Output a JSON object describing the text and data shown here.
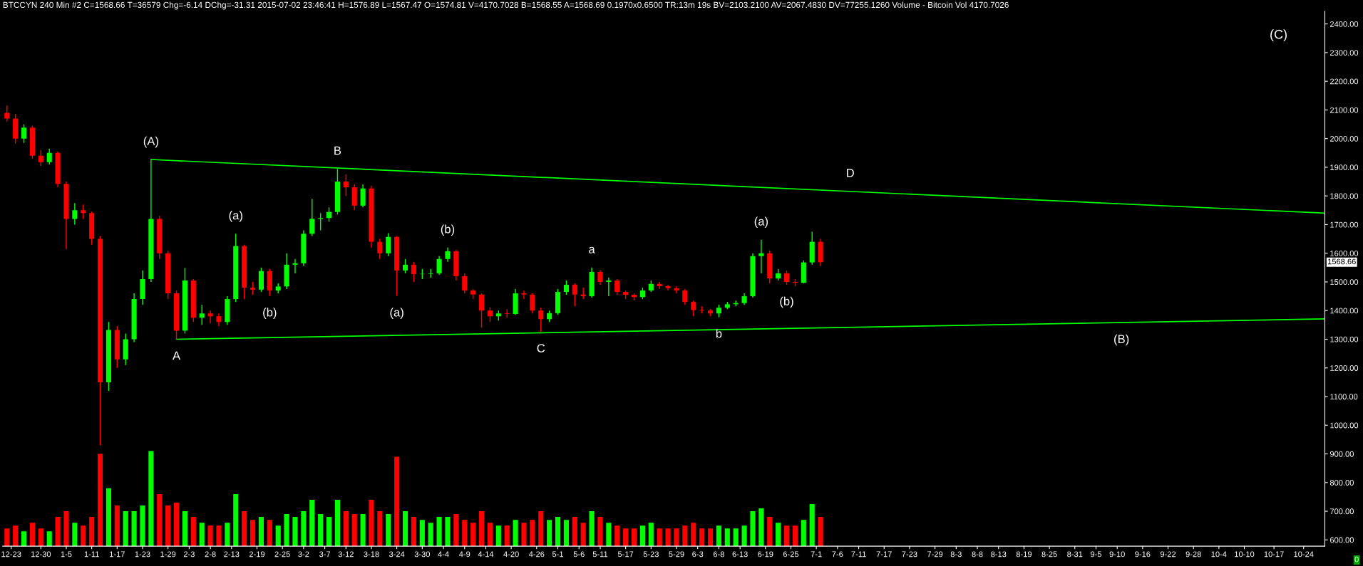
{
  "chart_data": {
    "type": "candlestick",
    "title": "BTCCYN 240 Min #2 C=1568.66 T=36579 Chg=-6.14 DChg=-31.31 2015-07-02 23:46:41 H=1576.89 L=1567.47 O=1574.81 V=4170.7028 B=1568.55 A=1568.69 0.1970x0.6500 TR:13m 19s BV=2103.2100 AV=2067.4830 DV=77255.1260 Volume - Bitcoin Vol 4170.7026",
    "x": [
      "2014-12-22",
      "2014-12-24",
      "2014-12-26",
      "2014-12-28",
      "2014-12-30",
      "2015-01-01",
      "2015-01-03",
      "2015-01-05",
      "2015-01-07",
      "2015-01-09",
      "2015-01-11",
      "2015-01-13",
      "2015-01-15",
      "2015-01-17",
      "2015-01-19",
      "2015-01-21",
      "2015-01-23",
      "2015-01-25",
      "2015-01-27",
      "2015-01-29",
      "2015-01-31",
      "2015-02-02",
      "2015-02-04",
      "2015-02-06",
      "2015-02-08",
      "2015-02-10",
      "2015-02-12",
      "2015-02-14",
      "2015-02-16",
      "2015-02-18",
      "2015-02-20",
      "2015-02-22",
      "2015-02-24",
      "2015-02-26",
      "2015-02-28",
      "2015-03-02",
      "2015-03-04",
      "2015-03-06",
      "2015-03-08",
      "2015-03-10",
      "2015-03-12",
      "2015-03-14",
      "2015-03-16",
      "2015-03-18",
      "2015-03-20",
      "2015-03-22",
      "2015-03-24",
      "2015-03-26",
      "2015-03-28",
      "2015-03-30",
      "2015-04-01",
      "2015-04-03",
      "2015-04-05",
      "2015-04-07",
      "2015-04-09",
      "2015-04-11",
      "2015-04-13",
      "2015-04-15",
      "2015-04-17",
      "2015-04-19",
      "2015-04-21",
      "2015-04-23",
      "2015-04-25",
      "2015-04-27",
      "2015-04-29",
      "2015-05-01",
      "2015-05-03",
      "2015-05-05",
      "2015-05-07",
      "2015-05-09",
      "2015-05-11",
      "2015-05-13",
      "2015-05-15",
      "2015-05-17",
      "2015-05-19",
      "2015-05-21",
      "2015-05-23",
      "2015-05-25",
      "2015-05-27",
      "2015-05-29",
      "2015-05-31",
      "2015-06-02",
      "2015-06-04",
      "2015-06-06",
      "2015-06-08",
      "2015-06-10",
      "2015-06-12",
      "2015-06-14",
      "2015-06-16",
      "2015-06-18",
      "2015-06-20",
      "2015-06-22",
      "2015-06-24",
      "2015-06-26",
      "2015-06-28",
      "2015-06-30",
      "2015-07-02"
    ],
    "ohlc": [
      [
        2090,
        2115,
        2060,
        2070
      ],
      [
        2070,
        2086,
        1983,
        2000
      ],
      [
        2000,
        2050,
        1985,
        2038
      ],
      [
        2038,
        2045,
        1930,
        1940
      ],
      [
        1940,
        1960,
        1905,
        1918
      ],
      [
        1918,
        1965,
        1910,
        1950
      ],
      [
        1950,
        1955,
        1830,
        1842
      ],
      [
        1842,
        1850,
        1614,
        1720
      ],
      [
        1720,
        1775,
        1700,
        1750
      ],
      [
        1750,
        1770,
        1720,
        1740
      ],
      [
        1740,
        1745,
        1630,
        1650
      ],
      [
        1650,
        1660,
        930,
        1150
      ],
      [
        1150,
        1360,
        1120,
        1332
      ],
      [
        1332,
        1345,
        1200,
        1230
      ],
      [
        1230,
        1320,
        1210,
        1300
      ],
      [
        1300,
        1460,
        1290,
        1440
      ],
      [
        1440,
        1540,
        1420,
        1510
      ],
      [
        1510,
        1927,
        1500,
        1720
      ],
      [
        1720,
        1730,
        1580,
        1600
      ],
      [
        1600,
        1610,
        1440,
        1460
      ],
      [
        1460,
        1470,
        1300,
        1330
      ],
      [
        1330,
        1549,
        1320,
        1505
      ],
      [
        1505,
        1510,
        1360,
        1375
      ],
      [
        1375,
        1420,
        1350,
        1390
      ],
      [
        1390,
        1400,
        1355,
        1380
      ],
      [
        1380,
        1390,
        1345,
        1360
      ],
      [
        1360,
        1450,
        1350,
        1440
      ],
      [
        1440,
        1668,
        1430,
        1625
      ],
      [
        1625,
        1630,
        1440,
        1480
      ],
      [
        1480,
        1500,
        1455,
        1473
      ],
      [
        1473,
        1550,
        1465,
        1538
      ],
      [
        1538,
        1545,
        1451,
        1470
      ],
      [
        1470,
        1495,
        1460,
        1484
      ],
      [
        1484,
        1600,
        1475,
        1560
      ],
      [
        1560,
        1580,
        1530,
        1565
      ],
      [
        1565,
        1680,
        1555,
        1668
      ],
      [
        1668,
        1790,
        1660,
        1720
      ],
      [
        1720,
        1740,
        1680,
        1723
      ],
      [
        1723,
        1760,
        1710,
        1744
      ],
      [
        1744,
        1894,
        1735,
        1850
      ],
      [
        1850,
        1875,
        1800,
        1830
      ],
      [
        1830,
        1840,
        1750,
        1766
      ],
      [
        1766,
        1840,
        1760,
        1826
      ],
      [
        1826,
        1835,
        1620,
        1640
      ],
      [
        1640,
        1650,
        1580,
        1600
      ],
      [
        1600,
        1670,
        1590,
        1657
      ],
      [
        1657,
        1660,
        1451,
        1540
      ],
      [
        1540,
        1580,
        1530,
        1560
      ],
      [
        1560,
        1570,
        1500,
        1527
      ],
      [
        1527,
        1545,
        1510,
        1528
      ],
      [
        1528,
        1545,
        1515,
        1530
      ],
      [
        1530,
        1590,
        1525,
        1580
      ],
      [
        1580,
        1620,
        1570,
        1607
      ],
      [
        1607,
        1612,
        1505,
        1520
      ],
      [
        1520,
        1530,
        1460,
        1470
      ],
      [
        1470,
        1475,
        1440,
        1456
      ],
      [
        1456,
        1460,
        1340,
        1400
      ],
      [
        1400,
        1412,
        1360,
        1380
      ],
      [
        1380,
        1400,
        1365,
        1390
      ],
      [
        1390,
        1405,
        1375,
        1388
      ],
      [
        1388,
        1475,
        1385,
        1460
      ],
      [
        1460,
        1470,
        1440,
        1456
      ],
      [
        1456,
        1460,
        1390,
        1400
      ],
      [
        1400,
        1410,
        1326,
        1370
      ],
      [
        1370,
        1400,
        1360,
        1391
      ],
      [
        1391,
        1475,
        1385,
        1465
      ],
      [
        1465,
        1505,
        1455,
        1490
      ],
      [
        1490,
        1495,
        1415,
        1456
      ],
      [
        1456,
        1480,
        1440,
        1450
      ],
      [
        1450,
        1550,
        1445,
        1535
      ],
      [
        1535,
        1540,
        1490,
        1500
      ],
      [
        1500,
        1515,
        1450,
        1505
      ],
      [
        1505,
        1510,
        1455,
        1465
      ],
      [
        1465,
        1470,
        1440,
        1455
      ],
      [
        1455,
        1460,
        1435,
        1447
      ],
      [
        1447,
        1480,
        1440,
        1470
      ],
      [
        1470,
        1505,
        1465,
        1493
      ],
      [
        1493,
        1500,
        1475,
        1485
      ],
      [
        1485,
        1490,
        1470,
        1478
      ],
      [
        1478,
        1485,
        1460,
        1470
      ],
      [
        1470,
        1475,
        1420,
        1430
      ],
      [
        1430,
        1435,
        1380,
        1402
      ],
      [
        1402,
        1415,
        1390,
        1400
      ],
      [
        1400,
        1405,
        1380,
        1390
      ],
      [
        1390,
        1420,
        1377,
        1410
      ],
      [
        1410,
        1430,
        1405,
        1422
      ],
      [
        1422,
        1435,
        1415,
        1426
      ],
      [
        1426,
        1460,
        1420,
        1450
      ],
      [
        1450,
        1600,
        1445,
        1590
      ],
      [
        1590,
        1647,
        1530,
        1600
      ],
      [
        1600,
        1610,
        1495,
        1512
      ],
      [
        1512,
        1545,
        1505,
        1530
      ],
      [
        1530,
        1540,
        1490,
        1500
      ],
      [
        1500,
        1510,
        1485,
        1497
      ],
      [
        1497,
        1575,
        1495,
        1568
      ],
      [
        1568,
        1675,
        1560,
        1640
      ],
      [
        1640,
        1650,
        1555,
        1568.66
      ]
    ],
    "colors": [
      "#ff0000",
      "#ff0000",
      "#00ff00",
      "#ff0000",
      "#ff0000",
      "#00ff00",
      "#ff0000",
      "#ff0000",
      "#00ff00",
      "#ff0000",
      "#ff0000",
      "#ff0000",
      "#00ff00",
      "#ff0000",
      "#00ff00",
      "#00ff00",
      "#00ff00",
      "#00ff00",
      "#ff0000",
      "#ff0000",
      "#ff0000",
      "#00ff00",
      "#ff0000",
      "#00ff00",
      "#ff0000",
      "#ff0000",
      "#00ff00",
      "#00ff00",
      "#ff0000",
      "#ff0000",
      "#00ff00",
      "#ff0000",
      "#00ff00",
      "#00ff00",
      "#00ff00",
      "#00ff00",
      "#00ff00",
      "#00ff00",
      "#00ff00",
      "#00ff00",
      "#ff0000",
      "#ff0000",
      "#00ff00",
      "#ff0000",
      "#ff0000",
      "#00ff00",
      "#ff0000",
      "#00ff00",
      "#ff0000",
      "#00ff00",
      "#00ff00",
      "#00ff00",
      "#00ff00",
      "#ff0000",
      "#ff0000",
      "#ff0000",
      "#ff0000",
      "#ff0000",
      "#00ff00",
      "#ff0000",
      "#00ff00",
      "#ff0000",
      "#ff0000",
      "#ff0000",
      "#00ff00",
      "#00ff00",
      "#00ff00",
      "#ff0000",
      "#ff0000",
      "#00ff00",
      "#ff0000",
      "#00ff00",
      "#ff0000",
      "#ff0000",
      "#ff0000",
      "#00ff00",
      "#00ff00",
      "#ff0000",
      "#ff0000",
      "#ff0000",
      "#ff0000",
      "#ff0000",
      "#ff0000",
      "#ff0000",
      "#00ff00",
      "#00ff00",
      "#00ff00",
      "#00ff00",
      "#00ff00",
      "#00ff00",
      "#ff0000",
      "#00ff00",
      "#ff0000",
      "#ff0000",
      "#00ff00",
      "#00ff00",
      "#ff0000"
    ],
    "series": [
      {
        "type": "bar",
        "values": [
          640,
          650,
          630,
          660,
          640,
          630,
          680,
          700,
          660,
          650,
          680,
          900,
          780,
          720,
          700,
          700,
          720,
          910,
          760,
          720,
          730,
          700,
          680,
          660,
          650,
          650,
          660,
          760,
          700,
          670,
          680,
          670,
          650,
          690,
          680,
          700,
          740,
          690,
          680,
          740,
          700,
          690,
          690,
          740,
          700,
          690,
          890,
          700,
          680,
          670,
          660,
          680,
          680,
          690,
          670,
          660,
          700,
          660,
          650,
          650,
          670,
          660,
          670,
          700,
          670,
          680,
          670,
          680,
          660,
          700,
          680,
          660,
          650,
          640,
          640,
          650,
          660,
          640,
          640,
          640,
          650,
          660,
          640,
          640,
          650,
          640,
          640,
          650,
          700,
          710,
          680,
          660,
          650,
          650,
          670,
          725,
          680
        ],
        "colors": [
          "#ff0000",
          "#ff0000",
          "#00ff00",
          "#ff0000",
          "#ff0000",
          "#00ff00",
          "#ff0000",
          "#ff0000",
          "#00ff00",
          "#ff0000",
          "#ff0000",
          "#ff0000",
          "#00ff00",
          "#ff0000",
          "#00ff00",
          "#00ff00",
          "#00ff00",
          "#00ff00",
          "#ff0000",
          "#ff0000",
          "#ff0000",
          "#00ff00",
          "#ff0000",
          "#00ff00",
          "#ff0000",
          "#ff0000",
          "#00ff00",
          "#00ff00",
          "#ff0000",
          "#ff0000",
          "#00ff00",
          "#ff0000",
          "#00ff00",
          "#00ff00",
          "#00ff00",
          "#00ff00",
          "#00ff00",
          "#00ff00",
          "#00ff00",
          "#00ff00",
          "#ff0000",
          "#ff0000",
          "#00ff00",
          "#ff0000",
          "#ff0000",
          "#00ff00",
          "#ff0000",
          "#00ff00",
          "#ff0000",
          "#00ff00",
          "#00ff00",
          "#00ff00",
          "#00ff00",
          "#ff0000",
          "#ff0000",
          "#ff0000",
          "#ff0000",
          "#ff0000",
          "#00ff00",
          "#ff0000",
          "#00ff00",
          "#ff0000",
          "#ff0000",
          "#ff0000",
          "#00ff00",
          "#00ff00",
          "#00ff00",
          "#ff0000",
          "#ff0000",
          "#00ff00",
          "#ff0000",
          "#00ff00",
          "#ff0000",
          "#ff0000",
          "#ff0000",
          "#00ff00",
          "#00ff00",
          "#ff0000",
          "#ff0000",
          "#ff0000",
          "#ff0000",
          "#ff0000",
          "#ff0000",
          "#ff0000",
          "#00ff00",
          "#00ff00",
          "#00ff00",
          "#00ff00",
          "#00ff00",
          "#00ff00",
          "#ff0000",
          "#00ff00",
          "#ff0000",
          "#ff0000",
          "#00ff00",
          "#00ff00",
          "#ff0000"
        ]
      },
      {
        "type": "line",
        "x": [
          "2015-01-25",
          "2015-10-29"
        ],
        "values": [
          1927,
          1740
        ],
        "color": "#00ff00"
      },
      {
        "type": "line",
        "x": [
          "2015-01-31",
          "2015-10-29"
        ],
        "values": [
          1300,
          1371
        ],
        "color": "#00ff00"
      }
    ],
    "annotations": [
      {
        "text": "(A)",
        "x": "2015-01-25",
        "y": 1927
      },
      {
        "text": "A",
        "x": "2015-01-31",
        "y": 1300
      },
      {
        "text": "B",
        "x": "2015-03-10",
        "y": 1894
      },
      {
        "text": "(a)",
        "x": "2015-02-14",
        "y": 1668
      },
      {
        "text": "(b)",
        "x": "2015-02-22",
        "y": 1451
      },
      {
        "text": "(a)",
        "x": "2015-03-24",
        "y": 1451
      },
      {
        "text": "(b)",
        "x": "2015-04-05",
        "y": 1620
      },
      {
        "text": "C",
        "x": "2015-04-27",
        "y": 1326
      },
      {
        "text": "a",
        "x": "2015-05-09",
        "y": 1550
      },
      {
        "text": "b",
        "x": "2015-06-08",
        "y": 1377
      },
      {
        "text": "(a)",
        "x": "2015-06-18",
        "y": 1647
      },
      {
        "text": "(b)",
        "x": "2015-06-24",
        "y": 1490
      },
      {
        "text": "D",
        "x": "2015-07-09",
        "y": 1816
      },
      {
        "text": "(B)",
        "x": "2015-09-11",
        "y": 1358
      },
      "(C)",
      "1568.66",
      "0"
    ],
    "xlim": [
      "2014-12-21",
      "2015-10-29"
    ],
    "ylim": [
      578,
      2444
    ],
    "xticks": [
      {
        "value": "2014-12-23",
        "label": "12-23"
      },
      {
        "value": "2014-12-30",
        "label": "12-30"
      },
      {
        "value": "2015-01-05",
        "label": "1-5"
      },
      {
        "value": "2015-01-11",
        "label": "1-11"
      },
      {
        "value": "2015-01-17",
        "label": "1-17"
      },
      {
        "value": "2015-01-23",
        "label": "1-23"
      },
      {
        "value": "2015-01-29",
        "label": "1-29"
      },
      {
        "value": "2015-02-03",
        "label": "2-3"
      },
      {
        "value": "2015-02-08",
        "label": "2-8"
      },
      {
        "value": "2015-02-13",
        "label": "2-13"
      },
      {
        "value": "2015-02-19",
        "label": "2-19"
      },
      {
        "value": "2015-02-25",
        "label": "2-25"
      },
      {
        "value": "2015-03-02",
        "label": "3-2"
      },
      {
        "value": "2015-03-07",
        "label": "3-7"
      },
      {
        "value": "2015-03-12",
        "label": "3-12"
      },
      {
        "value": "2015-03-18",
        "label": "3-18"
      },
      {
        "value": "2015-03-24",
        "label": "3-24"
      },
      {
        "value": "2015-03-30",
        "label": "3-30"
      },
      {
        "value": "2015-04-04",
        "label": "4-4"
      },
      {
        "value": "2015-04-09",
        "label": "4-9"
      },
      {
        "value": "2015-04-14",
        "label": "4-14"
      },
      {
        "value": "2015-04-20",
        "label": "4-20"
      },
      {
        "value": "2015-04-26",
        "label": "4-26"
      },
      {
        "value": "2015-05-01",
        "label": "5-1"
      },
      {
        "value": "2015-05-06",
        "label": "5-6"
      },
      {
        "value": "2015-05-11",
        "label": "5-11"
      },
      {
        "value": "2015-05-17",
        "label": "5-17"
      },
      {
        "value": "2015-05-23",
        "label": "5-23"
      },
      {
        "value": "2015-05-29",
        "label": "5-29"
      },
      {
        "value": "2015-06-03",
        "label": "6-3"
      },
      {
        "value": "2015-06-08",
        "label": "6-8"
      },
      {
        "value": "2015-06-13",
        "label": "6-13"
      },
      {
        "value": "2015-06-19",
        "label": "6-19"
      },
      {
        "value": "2015-06-25",
        "label": "6-25"
      },
      {
        "value": "2015-07-01",
        "label": "7-1"
      },
      {
        "value": "2015-07-06",
        "label": "7-6"
      },
      {
        "value": "2015-07-11",
        "label": "7-11"
      },
      {
        "value": "2015-07-17",
        "label": "7-17"
      },
      {
        "value": "2015-07-23",
        "label": "7-23"
      },
      {
        "value": "2015-07-29",
        "label": "7-29"
      },
      {
        "value": "2015-08-03",
        "label": "8-3"
      },
      {
        "value": "2015-08-08",
        "label": "8-8"
      },
      {
        "value": "2015-08-13",
        "label": "8-13"
      },
      {
        "value": "2015-08-19",
        "label": "8-19"
      },
      {
        "value": "2015-08-25",
        "label": "8-25"
      },
      {
        "value": "2015-08-31",
        "label": "8-31"
      },
      {
        "value": "2015-09-05",
        "label": "9-5"
      },
      {
        "value": "2015-09-10",
        "label": "9-10"
      },
      {
        "value": "2015-09-16",
        "label": "9-16"
      },
      {
        "value": "2015-09-22",
        "label": "9-22"
      },
      {
        "value": "2015-09-28",
        "label": "9-28"
      },
      {
        "value": "2015-10-04",
        "label": "10-4"
      },
      {
        "value": "2015-10-10",
        "label": "10-10"
      },
      {
        "value": "2015-10-17",
        "label": "10-17"
      },
      {
        "value": "2015-10-24",
        "label": "10-24"
      }
    ],
    "yticks": [
      {
        "value": 600,
        "label": "600.00"
      },
      {
        "value": 700,
        "label": "700.00"
      },
      {
        "value": 800,
        "label": "800.00"
      },
      {
        "value": 900,
        "label": "900.00"
      },
      {
        "value": 1000,
        "label": "1000.00"
      },
      {
        "value": 1100,
        "label": "1100.00"
      },
      {
        "value": 1200,
        "label": "1200.00"
      },
      {
        "value": 1300,
        "label": "1300.00"
      },
      {
        "value": 1400,
        "label": "1400.00"
      },
      {
        "value": 1500,
        "label": "1500.00"
      },
      {
        "value": 1600,
        "label": "1600.00"
      },
      {
        "value": 1700,
        "label": "1700.00"
      },
      {
        "value": 1800,
        "label": "1800.00"
      },
      {
        "value": 1900,
        "label": "1900.00"
      },
      {
        "value": 2000,
        "label": "2000.00"
      },
      {
        "value": 2100,
        "label": "2100.00"
      },
      {
        "value": 2200,
        "label": "2200.00"
      },
      {
        "value": 2300,
        "label": "2300.00"
      },
      {
        "value": 2400,
        "label": "2400.00"
      }
    ],
    "grid": false,
    "legend": false
  }
}
